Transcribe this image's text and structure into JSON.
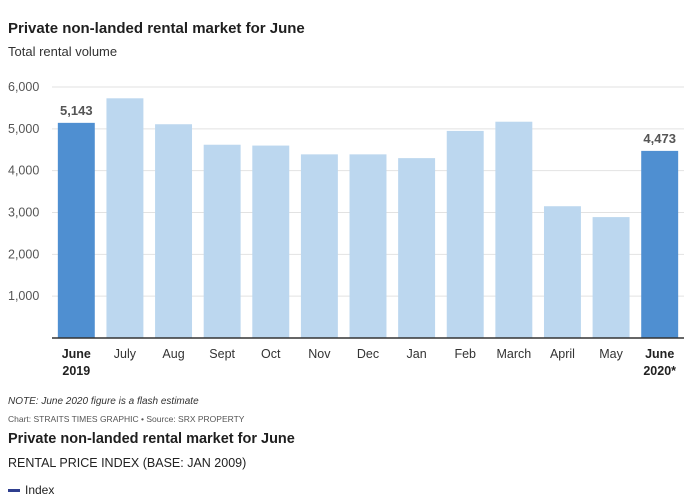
{
  "chart_data": {
    "type": "bar",
    "title": "Private non-landed rental market for June",
    "subtitle": "Total rental volume",
    "categories": [
      "June 2019",
      "July",
      "Aug",
      "Sept",
      "Oct",
      "Nov",
      "Dec",
      "Jan",
      "Feb",
      "March",
      "April",
      "May",
      "June 2020*"
    ],
    "category_lines": [
      [
        "June",
        "2019"
      ],
      [
        "July"
      ],
      [
        "Aug"
      ],
      [
        "Sept"
      ],
      [
        "Oct"
      ],
      [
        "Nov"
      ],
      [
        "Dec"
      ],
      [
        "Jan"
      ],
      [
        "Feb"
      ],
      [
        "March"
      ],
      [
        "April"
      ],
      [
        "May"
      ],
      [
        "June",
        "2020*"
      ]
    ],
    "values": [
      5143,
      5730,
      5110,
      4620,
      4600,
      4390,
      4390,
      4300,
      4950,
      5170,
      3150,
      2890,
      4473
    ],
    "highlighted": [
      0,
      12
    ],
    "data_labels": [
      {
        "index": 0,
        "text": "5,143"
      },
      {
        "index": 12,
        "text": "4,473"
      }
    ],
    "yticks": [
      1000,
      2000,
      3000,
      4000,
      5000,
      6000
    ],
    "ytick_labels": [
      "1,000",
      "2,000",
      "3,000",
      "4,000",
      "5,000",
      "6,000"
    ],
    "ylim": [
      0,
      6000
    ],
    "xlabel": "",
    "ylabel": "",
    "grid": true
  },
  "colors": {
    "highlight": "#4f8fd1",
    "normal": "#bcd7ef",
    "grid": "#e2e2e2",
    "axis": "#333333",
    "legend_line": "#2f3f8f"
  },
  "note": "NOTE: June 2020 figure is a flash estimate",
  "credit": "Chart: STRAITS TIMES GRAPHIC • Source: SRX PROPERTY",
  "second_chart": {
    "title": "Private non-landed rental market for June",
    "subtitle": "RENTAL PRICE INDEX (BASE: JAN 2009)",
    "legend_label": "Index"
  }
}
